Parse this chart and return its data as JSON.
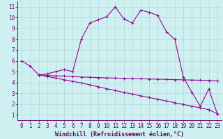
{
  "xlabel": "Windchill (Refroidissement éolien,°C)",
  "bg_color": "#cff0f0",
  "grid_color": "#b0d8d8",
  "line_color": "#990099",
  "xlim": [
    -0.5,
    23.5
  ],
  "ylim": [
    0.5,
    11.5
  ],
  "xticks": [
    0,
    1,
    2,
    3,
    4,
    5,
    6,
    7,
    8,
    9,
    10,
    11,
    12,
    13,
    14,
    15,
    16,
    17,
    18,
    19,
    20,
    21,
    22,
    23
  ],
  "yticks": [
    1,
    2,
    3,
    4,
    5,
    6,
    7,
    8,
    9,
    10,
    11
  ],
  "line1_x": [
    0,
    1,
    2,
    3,
    4,
    5,
    6,
    7,
    8,
    9,
    10,
    11,
    12,
    13,
    14,
    15,
    16,
    17,
    18,
    19,
    20,
    21,
    22,
    23
  ],
  "line1_y": [
    6.0,
    5.5,
    4.7,
    4.8,
    5.0,
    5.2,
    5.0,
    8.0,
    9.5,
    9.8,
    10.1,
    11.0,
    9.9,
    9.5,
    10.7,
    10.5,
    10.2,
    8.7,
    8.0,
    4.5,
    3.1,
    1.8,
    3.4,
    1.1
  ],
  "line2_x": [
    2,
    3,
    4,
    5,
    6,
    7,
    8,
    9,
    10,
    11,
    12,
    13,
    14,
    15,
    16,
    17,
    18,
    19,
    20,
    21,
    22,
    23
  ],
  "line2_y": [
    4.7,
    4.65,
    4.6,
    4.6,
    4.55,
    4.5,
    4.48,
    4.45,
    4.42,
    4.4,
    4.38,
    4.36,
    4.34,
    4.32,
    4.3,
    4.28,
    4.26,
    4.24,
    4.22,
    4.2,
    4.18,
    4.15
  ],
  "line3_x": [
    2,
    3,
    4,
    5,
    6,
    7,
    8,
    9,
    10,
    11,
    12,
    13,
    14,
    15,
    16,
    17,
    18,
    19,
    20,
    21,
    22,
    23
  ],
  "line3_y": [
    4.7,
    4.55,
    4.4,
    4.25,
    4.1,
    3.95,
    3.78,
    3.6,
    3.42,
    3.25,
    3.08,
    2.92,
    2.76,
    2.6,
    2.44,
    2.28,
    2.12,
    1.96,
    1.8,
    1.64,
    1.48,
    1.1
  ],
  "marker": "+",
  "markersize": 3,
  "linewidth": 0.8,
  "tick_fontsize": 5.5,
  "xlabel_fontsize": 6.0
}
